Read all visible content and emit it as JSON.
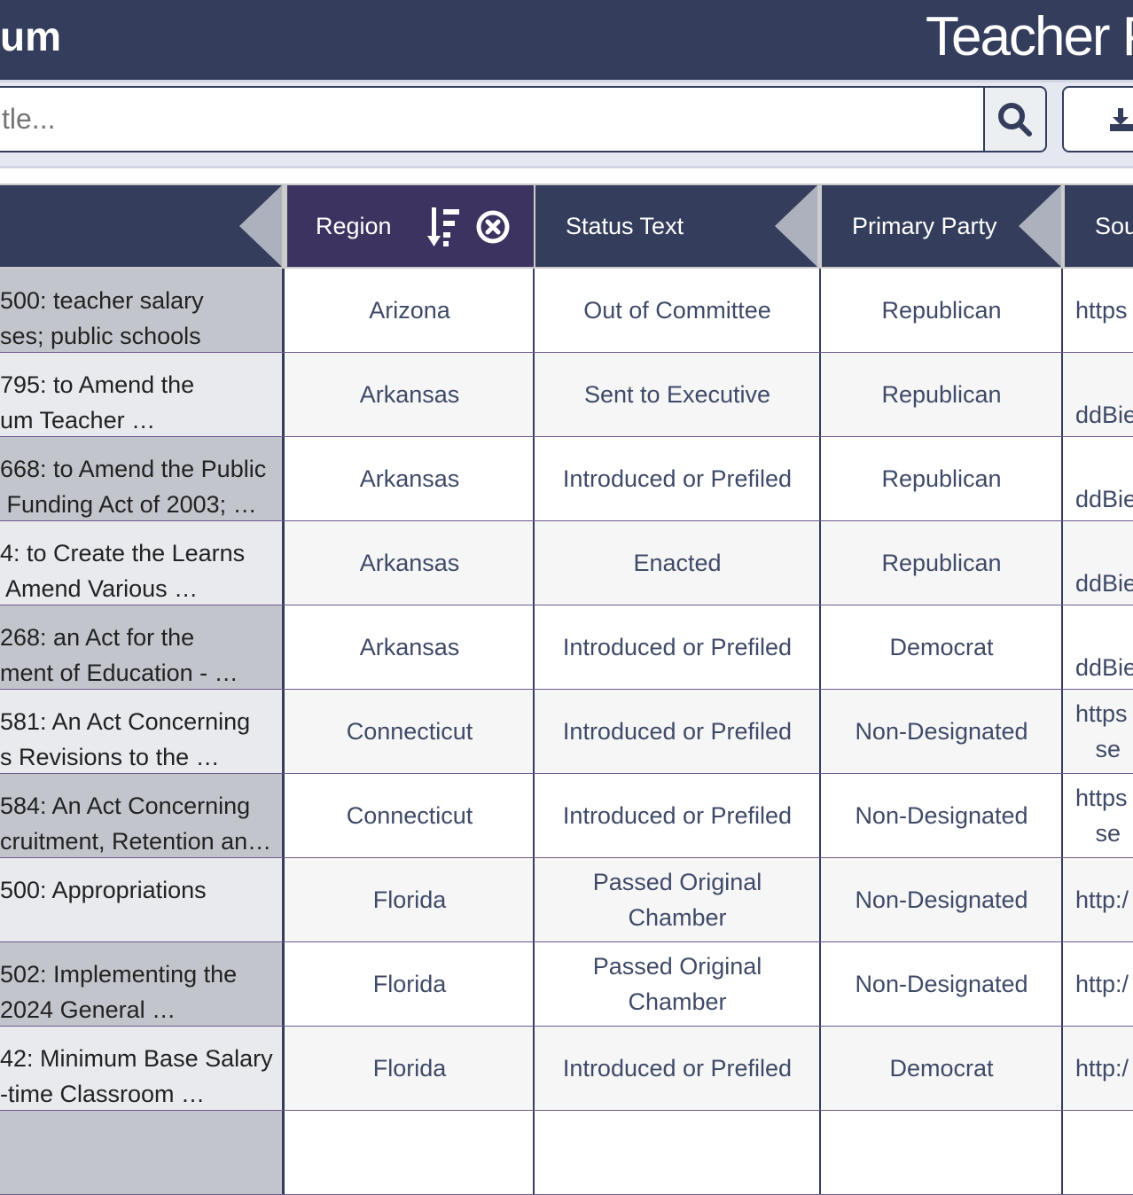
{
  "header": {
    "brand_fragment": "um",
    "title_fragment": "Teacher Pa"
  },
  "search": {
    "placeholder": "tle...",
    "search_icon": "magnifier-icon",
    "download_icon": "download-icon"
  },
  "columns": [
    {
      "label": "",
      "collapse_icon": "left-triangle"
    },
    {
      "label": "Region",
      "sort_icon": "sort-descending-icon",
      "clear_icon": "circle-x-icon"
    },
    {
      "label": "Status Text",
      "collapse_icon": "left-triangle"
    },
    {
      "label": "Primary Party",
      "collapse_icon": "left-triangle"
    },
    {
      "label": "Sou"
    }
  ],
  "colors": {
    "header": "#343e5c",
    "active_header": "#3c3360",
    "row_divider": "#6d5a8e"
  },
  "rows": [
    {
      "title": "500: teacher salary\nses; public schools",
      "region": "Arizona",
      "status": "Out of Committee",
      "party": "Republican",
      "source": "https"
    },
    {
      "title": "795: to Amend the\num Teacher …",
      "region": "Arkansas",
      "status": "Sent to Executive",
      "party": "Republican",
      "source": "\nddBie"
    },
    {
      "title": "668: to Amend the Public\n Funding Act of 2003; …",
      "region": "Arkansas",
      "status": "Introduced or Prefiled",
      "party": "Republican",
      "source": "\nddBie"
    },
    {
      "title": "4: to Create the Learns\n Amend Various …",
      "region": "Arkansas",
      "status": "Enacted",
      "party": "Republican",
      "source": "\nddBie"
    },
    {
      "title": "268: an Act for the\nment of Education - …",
      "region": "Arkansas",
      "status": "Introduced or Prefiled",
      "party": "Democrat",
      "source": "\nddBie"
    },
    {
      "title": "581: An Act Concerning\ns Revisions to the …",
      "region": "Connecticut",
      "status": "Introduced or Prefiled",
      "party": "Non-Designated",
      "source": "https\n   se"
    },
    {
      "title": "584: An Act Concerning\ncruitment, Retention an…",
      "region": "Connecticut",
      "status": "Introduced or Prefiled",
      "party": "Non-Designated",
      "source": "https\n   se"
    },
    {
      "title": "500: Appropriations",
      "region": "Florida",
      "status": "Passed Original Chamber",
      "party": "Non-Designated",
      "source": "http:/"
    },
    {
      "title": "502: Implementing the\n2024 General …",
      "region": "Florida",
      "status": "Passed Original Chamber",
      "party": "Non-Designated",
      "source": "http:/"
    },
    {
      "title": "42: Minimum Base Salary\n-time Classroom …",
      "region": "Florida",
      "status": "Introduced or Prefiled",
      "party": "Democrat",
      "source": "http:/"
    },
    {
      "title": "",
      "region": "",
      "status": "",
      "party": "",
      "source": ""
    }
  ]
}
